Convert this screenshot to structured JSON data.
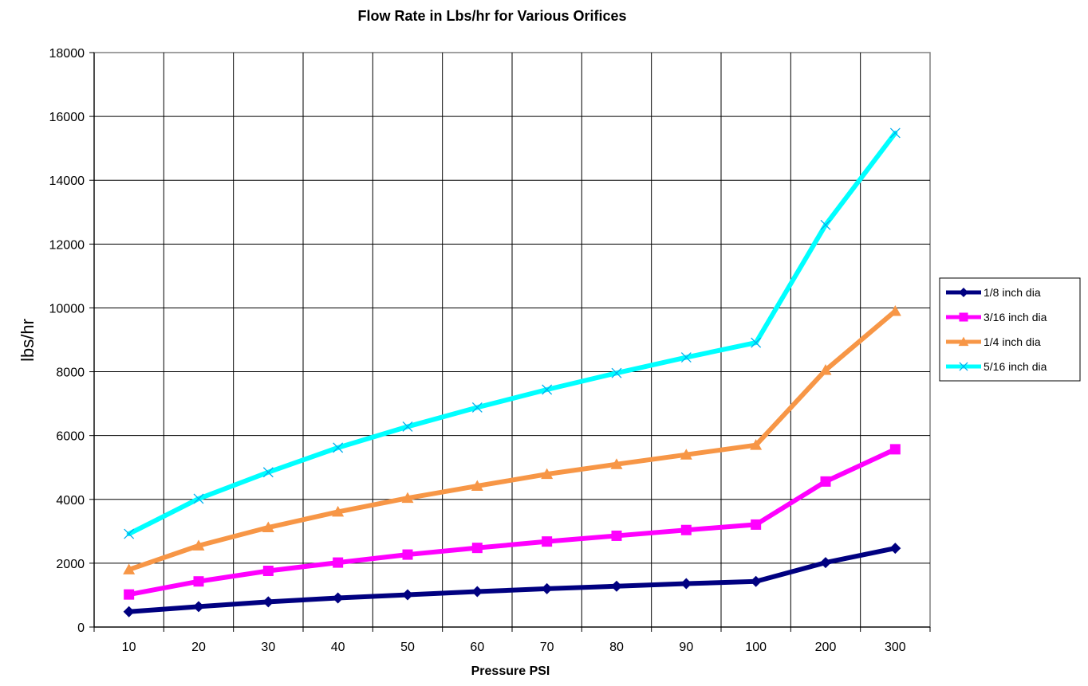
{
  "chart_data": {
    "type": "line",
    "title": "Flow Rate in Lbs/hr for Various Orifices",
    "xlabel": "Pressure PSI",
    "ylabel": "lbs/hr",
    "categories": [
      "10",
      "20",
      "30",
      "40",
      "50",
      "60",
      "70",
      "80",
      "90",
      "100",
      "200",
      "300"
    ],
    "ylim": [
      0,
      18000
    ],
    "yticks": [
      "0",
      "2000",
      "4000",
      "6000",
      "8000",
      "10000",
      "12000",
      "14000",
      "16000",
      "18000"
    ],
    "grid": true,
    "legend_position": "right",
    "series": [
      {
        "name": "1/8 inch dia",
        "color": "#000080",
        "marker": "diamond",
        "values": [
          480,
          640,
          790,
          910,
          1010,
          1110,
          1200,
          1280,
          1360,
          1430,
          2020,
          2470
        ]
      },
      {
        "name": "3/16 inch dia",
        "color": "#FF00FF",
        "marker": "square",
        "values": [
          1020,
          1430,
          1760,
          2020,
          2270,
          2480,
          2680,
          2860,
          3040,
          3210,
          4560,
          5570
        ]
      },
      {
        "name": "1/4 inch dia",
        "color": "#F79646",
        "marker": "triangle",
        "values": [
          1800,
          2550,
          3120,
          3610,
          4040,
          4420,
          4790,
          5100,
          5400,
          5700,
          8050,
          9900
        ]
      },
      {
        "name": "5/16 inch dia",
        "color": "#00FFFF",
        "marker": "x",
        "values": [
          2920,
          4020,
          4850,
          5620,
          6280,
          6880,
          7440,
          7960,
          8450,
          8910,
          12600,
          15480
        ]
      }
    ]
  }
}
